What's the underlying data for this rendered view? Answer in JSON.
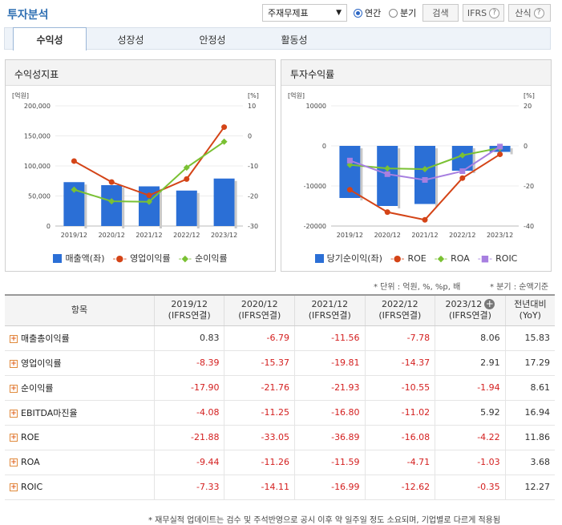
{
  "header": {
    "title": "투자분석",
    "select_value": "주재무제표",
    "radio_annual": "연간",
    "radio_quarter": "분기",
    "search_label": "검색",
    "ifrs_label": "IFRS",
    "formula_label": "산식"
  },
  "tabs": [
    "수익성",
    "성장성",
    "안정성",
    "활동성"
  ],
  "left_panel": {
    "title": "수익성지표",
    "legend": [
      "매출액(좌)",
      "영업이익률",
      "순이익률"
    ]
  },
  "right_panel": {
    "title": "투자수익률",
    "legend": [
      "당기순이익(좌)",
      "ROE",
      "ROA",
      "ROIC"
    ]
  },
  "chart_data": [
    {
      "type": "bar+line",
      "title": "수익성지표",
      "categories": [
        "2019/12",
        "2020/12",
        "2021/12",
        "2022/12",
        "2023/12"
      ],
      "left_unit": "[억원]",
      "right_unit": "[%]",
      "left_ticks": [
        "200,000",
        "150,000",
        "100,000",
        "50,000",
        "0"
      ],
      "right_ticks": [
        "10",
        "0",
        "-10",
        "-20",
        "-30"
      ],
      "ylim_left": [
        0,
        200000
      ],
      "ylim_right": [
        -30,
        10
      ],
      "series": [
        {
          "name": "매출액(좌)",
          "type": "bar",
          "axis": "left",
          "color": "#2b6fd6",
          "values": [
            73000,
            68000,
            66000,
            59000,
            79000
          ]
        },
        {
          "name": "영업이익률",
          "type": "line",
          "axis": "right",
          "color": "#d44417",
          "values": [
            -8.39,
            -15.37,
            -19.81,
            -14.37,
            2.91
          ]
        },
        {
          "name": "순이익률",
          "type": "line",
          "axis": "right",
          "color": "#7ac133",
          "values": [
            -17.9,
            -21.76,
            -21.93,
            -10.55,
            -1.94
          ]
        }
      ]
    },
    {
      "type": "bar+line",
      "title": "투자수익률",
      "categories": [
        "2019/12",
        "2020/12",
        "2021/12",
        "2022/12",
        "2023/12"
      ],
      "left_unit": "[억원]",
      "right_unit": "[%]",
      "left_ticks": [
        "10000",
        "0",
        "-10000",
        "-20000"
      ],
      "right_ticks": [
        "20",
        "0",
        "-20",
        "-40"
      ],
      "ylim_left": [
        -20000,
        10000
      ],
      "ylim_right": [
        -40,
        20
      ],
      "series": [
        {
          "name": "당기순이익(좌)",
          "type": "bar",
          "axis": "left",
          "color": "#2b6fd6",
          "values": [
            -13000,
            -15000,
            -14500,
            -6200,
            -1500
          ]
        },
        {
          "name": "ROE",
          "type": "line",
          "axis": "right",
          "color": "#d44417",
          "values": [
            -21.88,
            -33.05,
            -36.89,
            -16.08,
            -4.22
          ]
        },
        {
          "name": "ROA",
          "type": "line",
          "axis": "right",
          "color": "#7ac133",
          "values": [
            -9.44,
            -11.26,
            -11.59,
            -4.71,
            -1.03
          ]
        },
        {
          "name": "ROIC",
          "type": "line",
          "axis": "right",
          "color": "#a77fe0",
          "values": [
            -7.33,
            -14.11,
            -16.99,
            -12.62,
            -0.35
          ]
        }
      ]
    }
  ],
  "unit_note_left": "* 단위 : 억원, %, %p, 배",
  "unit_note_right": "* 분기 : 순액기준",
  "table": {
    "col_item": "항목",
    "columns": [
      {
        "period": "2019/12",
        "basis": "(IFRS연결)"
      },
      {
        "period": "2020/12",
        "basis": "(IFRS연결)"
      },
      {
        "period": "2021/12",
        "basis": "(IFRS연결)"
      },
      {
        "period": "2022/12",
        "basis": "(IFRS연결)"
      },
      {
        "period": "2023/12",
        "basis": "(IFRS연결)"
      }
    ],
    "col_yoy_1": "전년대비",
    "col_yoy_2": "(YoY)",
    "rows": [
      {
        "label": "매출총이익률",
        "values": [
          "0.83",
          "-6.79",
          "-11.56",
          "-7.78",
          "8.06"
        ],
        "yoy": "15.83"
      },
      {
        "label": "영업이익률",
        "values": [
          "-8.39",
          "-15.37",
          "-19.81",
          "-14.37",
          "2.91"
        ],
        "yoy": "17.29"
      },
      {
        "label": "순이익률",
        "values": [
          "-17.90",
          "-21.76",
          "-21.93",
          "-10.55",
          "-1.94"
        ],
        "yoy": "8.61"
      },
      {
        "label": "EBITDA마진율",
        "values": [
          "-4.08",
          "-11.25",
          "-16.80",
          "-11.02",
          "5.92"
        ],
        "yoy": "16.94"
      },
      {
        "label": "ROE",
        "values": [
          "-21.88",
          "-33.05",
          "-36.89",
          "-16.08",
          "-4.22"
        ],
        "yoy": "11.86"
      },
      {
        "label": "ROA",
        "values": [
          "-9.44",
          "-11.26",
          "-11.59",
          "-4.71",
          "-1.03"
        ],
        "yoy": "3.68"
      },
      {
        "label": "ROIC",
        "values": [
          "-7.33",
          "-14.11",
          "-16.99",
          "-12.62",
          "-0.35"
        ],
        "yoy": "12.27"
      }
    ]
  },
  "footnote": "* 재무실적 업데이트는 검수 및 주석반영으로 공시 이후 약 일주일 정도 소요되며, 기업별로 다르게 적용됨"
}
